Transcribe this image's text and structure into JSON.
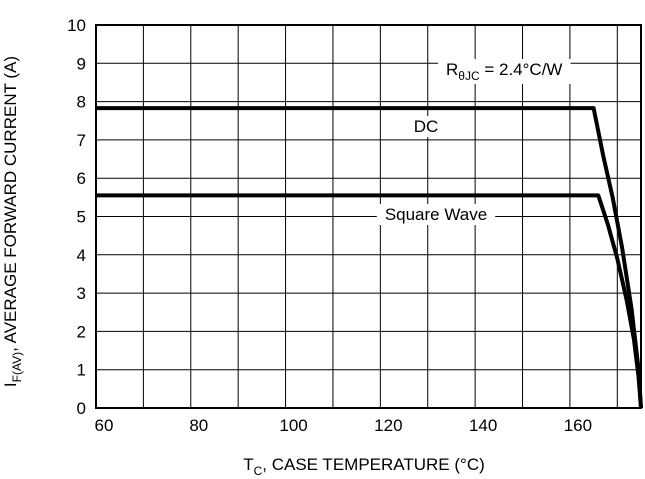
{
  "chart_data": {
    "type": "line",
    "xlabel": {
      "main": "T",
      "sub": "C",
      "rest": ", CASE TEMPERATURE (°C)"
    },
    "ylabel": {
      "main": "I",
      "sub": "F(AV)",
      "rest": ", AVERAGE FORWARD CURRENT (A)"
    },
    "xlim": [
      60,
      175
    ],
    "ylim": [
      0,
      10
    ],
    "x_ticks": [
      60,
      80,
      100,
      120,
      140,
      160
    ],
    "y_ticks": [
      0,
      1,
      2,
      3,
      4,
      5,
      6,
      7,
      8,
      9,
      10
    ],
    "x_tick_labels": [
      "60",
      "80",
      "100",
      "120",
      "140",
      "160"
    ],
    "y_tick_labels": [
      "0",
      "1",
      "2",
      "3",
      "4",
      "5",
      "6",
      "7",
      "8",
      "9",
      "10"
    ],
    "grid": true,
    "x_grid_step": 10,
    "y_grid_step": 1,
    "annotation": {
      "main": "R",
      "sub": "θJC",
      "rest": " = 2.4°C/W"
    },
    "series": [
      {
        "name": "DC",
        "x": [
          60,
          165,
          167,
          169,
          171,
          173,
          174.5,
          175
        ],
        "y": [
          7.83,
          7.83,
          6.6,
          5.5,
          4.2,
          2.6,
          1.0,
          0
        ]
      },
      {
        "name": "Square Wave",
        "x": [
          60,
          166,
          168,
          170,
          172,
          173.5,
          174.5,
          175
        ],
        "y": [
          5.55,
          5.55,
          4.8,
          3.9,
          2.8,
          1.8,
          0.8,
          0
        ]
      }
    ]
  }
}
